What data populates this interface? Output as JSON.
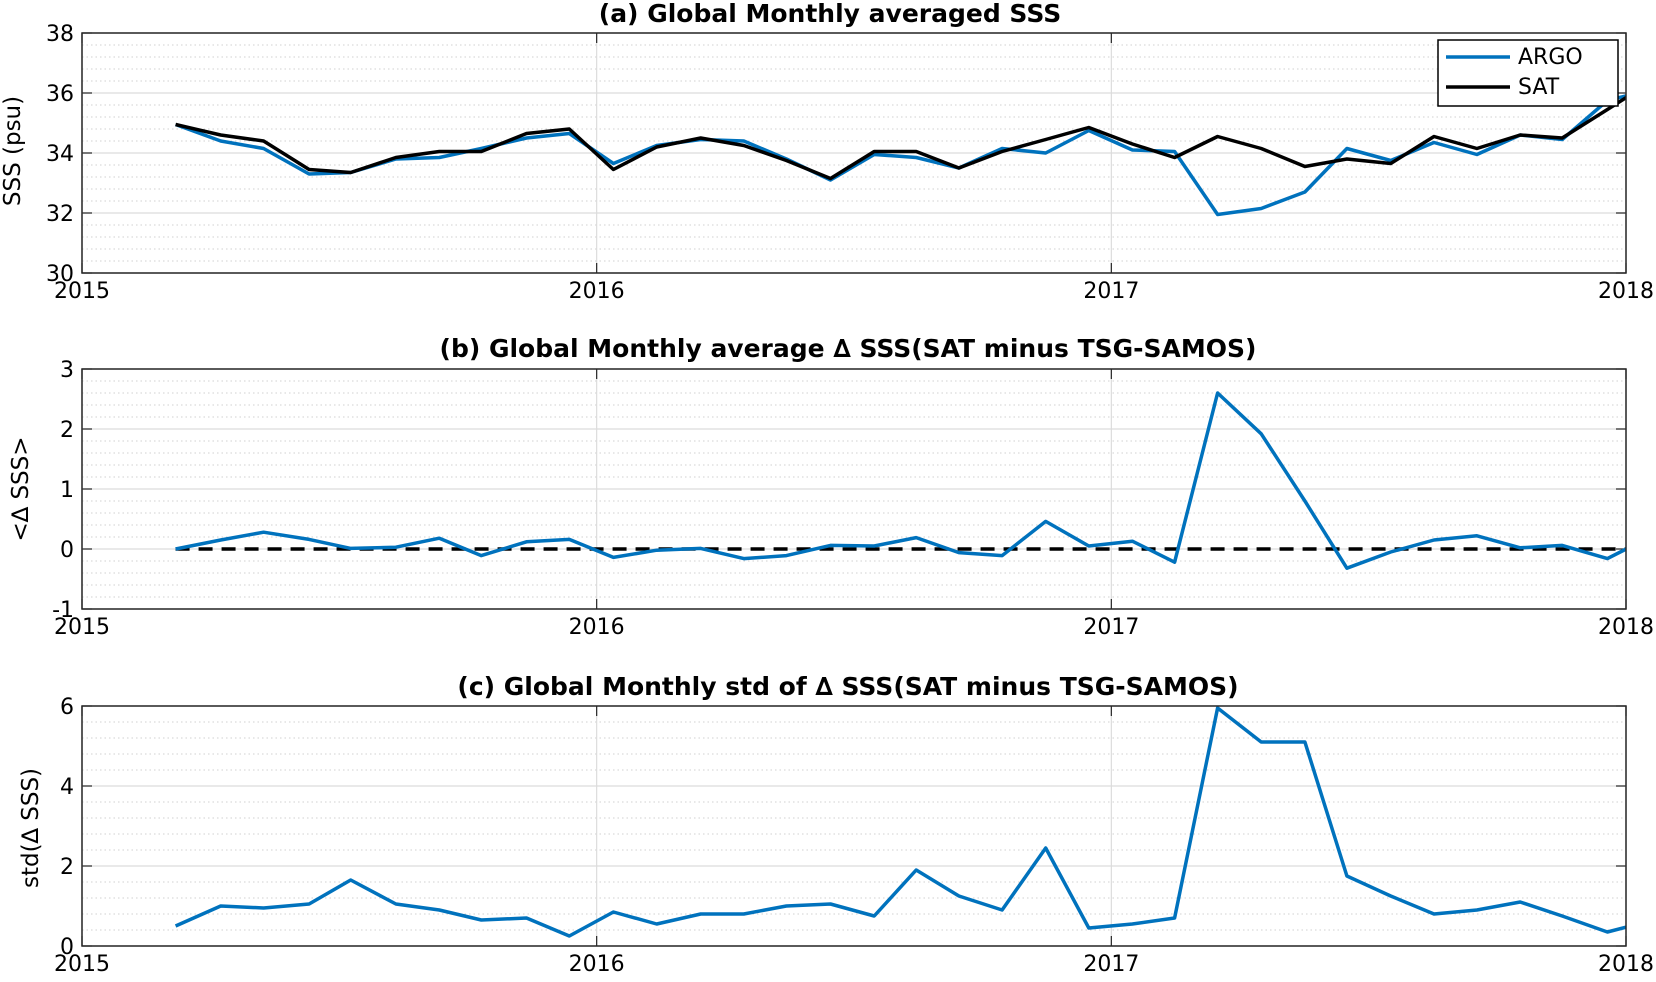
{
  "chart_data": [
    {
      "type": "line",
      "title": "(a) Global Monthly averaged SSS",
      "ylabel": "SSS (psu)",
      "xlabel": "",
      "xlim": [
        2015,
        2018
      ],
      "ylim": [
        30,
        38
      ],
      "yticks": [
        "30",
        "32",
        "34",
        "36",
        "38"
      ],
      "xticks": [
        "2015",
        "2016",
        "2017",
        "2018"
      ],
      "grid": true,
      "minor_grid": true,
      "legend": "top-right",
      "x": [
        2015.1818,
        2015.2694,
        2015.3529,
        2015.4413,
        2015.522,
        2015.6099,
        2015.6943,
        2015.7758,
        2015.8636,
        2015.9468,
        2016.0325,
        2016.1166,
        2016.2022,
        2016.2858,
        2016.3687,
        2016.4544,
        2016.5392,
        2016.6209,
        2016.7038,
        2016.7877,
        2016.8724,
        2016.9562,
        2017.0409,
        2017.123,
        2017.2065,
        2017.2911,
        2017.3761,
        2017.4578,
        2017.5428,
        2017.627,
        2017.7103,
        2017.7944,
        2017.8761,
        2017.9639,
        2018.0235
      ],
      "series": [
        {
          "name": "ARGO",
          "color": "#0072BD",
          "values": [
            34.95,
            34.4,
            34.15,
            33.3,
            33.35,
            33.8,
            33.85,
            34.15,
            34.5,
            34.65,
            33.65,
            34.25,
            34.45,
            34.4,
            33.8,
            33.1,
            33.95,
            33.85,
            33.5,
            34.15,
            34.0,
            34.75,
            34.1,
            34.05,
            31.95,
            32.15,
            32.7,
            34.15,
            33.75,
            34.35,
            33.95,
            34.6,
            34.45,
            35.75,
            36.0
          ]
        },
        {
          "name": "SAT",
          "color": "#000000",
          "values": [
            34.95,
            34.6,
            34.4,
            33.45,
            33.35,
            33.85,
            34.05,
            34.05,
            34.65,
            34.8,
            33.45,
            34.2,
            34.5,
            34.25,
            33.75,
            33.15,
            34.05,
            34.05,
            33.5,
            34.05,
            34.45,
            34.85,
            34.3,
            33.85,
            34.55,
            34.15,
            33.55,
            33.8,
            33.65,
            34.55,
            34.15,
            34.6,
            34.5,
            35.45,
            36.1
          ]
        }
      ]
    },
    {
      "type": "line",
      "title": "(b) Global Monthly average ∆ SSS(SAT minus TSG-SAMOS)",
      "ylabel": "<∆ SSS>",
      "xlabel": "",
      "xlim": [
        2015,
        2018
      ],
      "ylim": [
        -1,
        3
      ],
      "yticks": [
        "-1",
        "0",
        "1",
        "2",
        "3"
      ],
      "xticks": [
        "2015",
        "2016",
        "2017",
        "2018"
      ],
      "grid": true,
      "minor_grid": true,
      "reference_line": {
        "y": 0,
        "style": "dashed",
        "color": "#000000"
      },
      "x": [
        2015.1818,
        2015.2694,
        2015.3529,
        2015.4413,
        2015.522,
        2015.6099,
        2015.6943,
        2015.7758,
        2015.8636,
        2015.9468,
        2016.0325,
        2016.1166,
        2016.2022,
        2016.2858,
        2016.3687,
        2016.4544,
        2016.5392,
        2016.6209,
        2016.7038,
        2016.7877,
        2016.8724,
        2016.9562,
        2017.0409,
        2017.123,
        2017.2065,
        2017.2911,
        2017.3761,
        2017.4578,
        2017.5428,
        2017.627,
        2017.7103,
        2017.7944,
        2017.8761,
        2017.9639,
        2018.0235
      ],
      "series": [
        {
          "name": "",
          "color": "#0072BD",
          "values": [
            0.0,
            0.15,
            0.28,
            0.16,
            0.01,
            0.03,
            0.18,
            -0.11,
            0.12,
            0.16,
            -0.14,
            -0.02,
            0.01,
            -0.16,
            -0.11,
            0.06,
            0.05,
            0.19,
            -0.06,
            -0.11,
            0.46,
            0.05,
            0.13,
            -0.22,
            2.6,
            1.92,
            0.8,
            -0.32,
            -0.05,
            0.15,
            0.22,
            0.02,
            0.06,
            -0.16,
            0.1
          ]
        }
      ]
    },
    {
      "type": "line",
      "title": "(c) Global Monthly std of ∆ SSS(SAT minus TSG-SAMOS)",
      "ylabel": "std(∆ SSS)",
      "xlabel": "",
      "xlim": [
        2015,
        2018
      ],
      "ylim": [
        0,
        6
      ],
      "yticks": [
        "0",
        "2",
        "4",
        "6"
      ],
      "xticks": [
        "2015",
        "2016",
        "2017",
        "2018"
      ],
      "grid": true,
      "minor_grid": true,
      "x": [
        2015.1818,
        2015.2694,
        2015.3529,
        2015.4413,
        2015.522,
        2015.6099,
        2015.6943,
        2015.7758,
        2015.8636,
        2015.9468,
        2016.0325,
        2016.1166,
        2016.2022,
        2016.2858,
        2016.3687,
        2016.4544,
        2016.5392,
        2016.6209,
        2016.7038,
        2016.7877,
        2016.8724,
        2016.9562,
        2017.0409,
        2017.123,
        2017.2065,
        2017.2911,
        2017.3761,
        2017.4578,
        2017.5428,
        2017.627,
        2017.7103,
        2017.7944,
        2017.8761,
        2017.9639,
        2018.0235
      ],
      "series": [
        {
          "name": "",
          "color": "#0072BD",
          "values": [
            0.5,
            1.0,
            0.95,
            1.05,
            1.65,
            1.05,
            0.9,
            0.65,
            0.7,
            0.25,
            0.85,
            0.55,
            0.8,
            0.8,
            1.0,
            1.05,
            0.75,
            1.9,
            1.25,
            0.9,
            2.45,
            0.45,
            0.55,
            0.7,
            5.95,
            5.1,
            5.1,
            1.75,
            1.25,
            0.8,
            0.9,
            1.1,
            0.75,
            0.35,
            0.55
          ]
        }
      ]
    }
  ]
}
